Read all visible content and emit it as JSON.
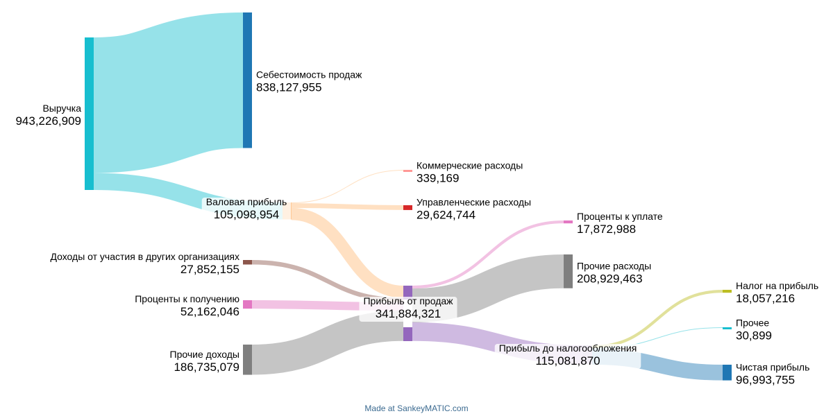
{
  "chart_data": {
    "type": "sankey",
    "units": "",
    "nodes": [
      {
        "id": "revenue",
        "label": "Выручка",
        "value": "943,226,909",
        "color": "#17becf"
      },
      {
        "id": "cogs",
        "label": "Себестоимость продаж",
        "value": "838,127,955",
        "color": "#1f77b4"
      },
      {
        "id": "gross",
        "label": "Валовая прибыль",
        "value": "105,098,954",
        "color": "#ffbb78"
      },
      {
        "id": "commercial",
        "label": "Коммерческие расходы",
        "value": "339,169",
        "color": "#ff9896"
      },
      {
        "id": "admin",
        "label": "Управленческие расходы",
        "value": "29,624,744",
        "color": "#d62728"
      },
      {
        "id": "participation",
        "label": "Доходы от участия в других организациях",
        "value": "27,852,155",
        "color": "#8c564b"
      },
      {
        "id": "int_income",
        "label": "Проценты к получению",
        "value": "52,162,046",
        "color": "#e377c2"
      },
      {
        "id": "other_income",
        "label": "Прочие доходы",
        "value": "186,735,079",
        "color": "#7f7f7f"
      },
      {
        "id": "sales_profit",
        "label": "Прибыль от продаж",
        "value": "341,884,321",
        "color": "#9467bd"
      },
      {
        "id": "int_payable",
        "label": "Проценты к уплате",
        "value": "17,872,988",
        "color": "#e377c2"
      },
      {
        "id": "other_exp",
        "label": "Прочие расходы",
        "value": "208,929,463",
        "color": "#7f7f7f"
      },
      {
        "id": "pretax",
        "label": "Прибыль до налогообложения",
        "value": "115,081,870",
        "color": "#c5b0d5"
      },
      {
        "id": "tax",
        "label": "Налог на прибыль",
        "value": "18,057,216",
        "color": "#bcbd22"
      },
      {
        "id": "other",
        "label": "Прочее",
        "value": "30,899",
        "color": "#17becf"
      },
      {
        "id": "net",
        "label": "Чистая прибыль",
        "value": "96,993,755",
        "color": "#1f77b4"
      }
    ],
    "links": [
      {
        "source": "revenue",
        "target": "cogs",
        "value": 838127955,
        "color": "#17becf"
      },
      {
        "source": "revenue",
        "target": "gross",
        "value": 105098954,
        "color": "#17becf"
      },
      {
        "source": "gross",
        "target": "commercial",
        "value": 339169,
        "color": "#ffbb78"
      },
      {
        "source": "gross",
        "target": "admin",
        "value": 29624744,
        "color": "#ffbb78"
      },
      {
        "source": "gross",
        "target": "sales_profit",
        "value": 75135041,
        "color": "#ffbb78"
      },
      {
        "source": "participation",
        "target": "sales_profit",
        "value": 27852155,
        "color": "#8c564b"
      },
      {
        "source": "int_income",
        "target": "sales_profit",
        "value": 52162046,
        "color": "#e377c2"
      },
      {
        "source": "other_income",
        "target": "sales_profit",
        "value": 186735079,
        "color": "#7f7f7f"
      },
      {
        "source": "sales_profit",
        "target": "int_payable",
        "value": 17872988,
        "color": "#e377c2"
      },
      {
        "source": "sales_profit",
        "target": "other_exp",
        "value": 208929463,
        "color": "#7f7f7f"
      },
      {
        "source": "sales_profit",
        "target": "pretax",
        "value": 115081870,
        "color": "#9467bd"
      },
      {
        "source": "pretax",
        "target": "tax",
        "value": 18057216,
        "color": "#bcbd22"
      },
      {
        "source": "pretax",
        "target": "other",
        "value": 30899,
        "color": "#17becf"
      },
      {
        "source": "pretax",
        "target": "net",
        "value": 96993755,
        "color": "#1f77b4"
      }
    ]
  },
  "footer": {
    "credit": "Made at SankeyMATIC.com"
  }
}
